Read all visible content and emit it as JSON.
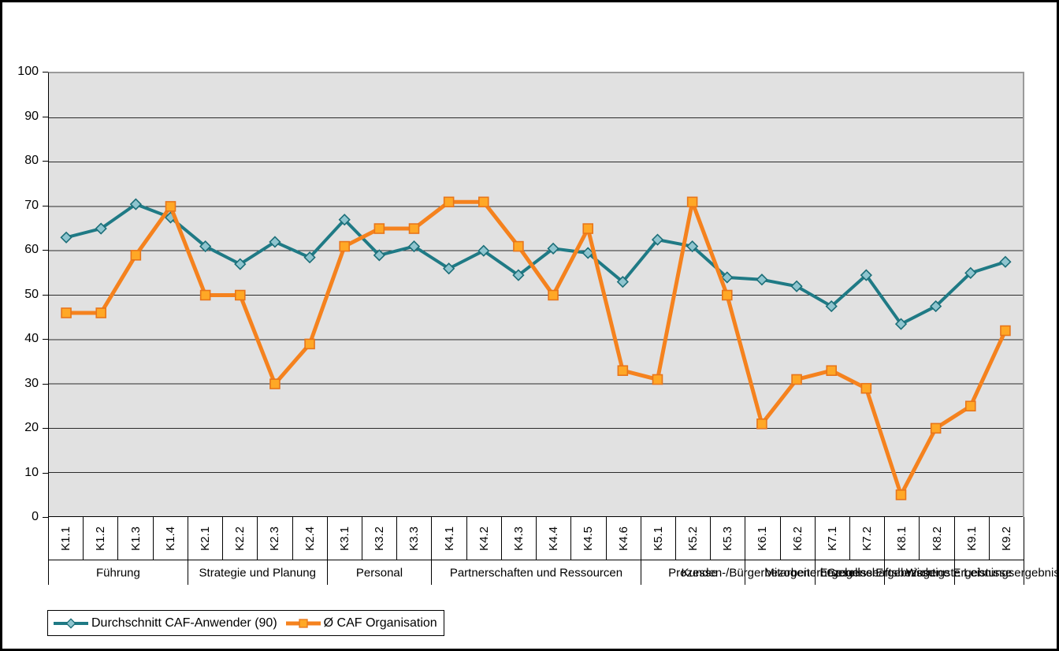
{
  "chart_data": {
    "type": "line",
    "title": "",
    "xlabel": "",
    "ylabel": "",
    "ylim": [
      0,
      100
    ],
    "y_ticks": [
      0,
      10,
      20,
      30,
      40,
      50,
      60,
      70,
      80,
      90,
      100
    ],
    "grid": true,
    "plot_bg": "#E1E1E1",
    "legend_position": "bottom-left",
    "categories": [
      "K1.1",
      "K1.2",
      "K1.3",
      "K1.4",
      "K2.1",
      "K2.2",
      "K2.3",
      "K2.4",
      "K3.1",
      "K3.2",
      "K3.3",
      "K4.1",
      "K4.2",
      "K4.3",
      "K4.4",
      "K4.5",
      "K4.6",
      "K5.1",
      "K5.2",
      "K5.3",
      "K6.1",
      "K6.2",
      "K7.1",
      "K7.2",
      "K8.1",
      "K8.2",
      "K9.1",
      "K9.2"
    ],
    "groups": [
      {
        "label": "Führung",
        "span": 4
      },
      {
        "label": "Strategie und Planung",
        "span": 4
      },
      {
        "label": "Personal",
        "span": 3
      },
      {
        "label": "Partnerschaften und Ressourcen",
        "span": 6
      },
      {
        "label": "Prozesse",
        "span": 3
      },
      {
        "label": "Kunden-/Bürgerbezogene Ergebnisse",
        "span": 2
      },
      {
        "label": "Mitarbeiterbezogene Ergebnisse",
        "span": 2
      },
      {
        "label": "Gesellschaftsbezogene Ergebnisse",
        "span": 2
      },
      {
        "label": "Wichtigste Leistungsergebnisse",
        "span": 2
      }
    ],
    "series": [
      {
        "name": "Durchschnitt CAF-Anwender (90)",
        "marker": "diamond",
        "color": "#1F7A85",
        "marker_fill": "#8FC5CF",
        "marker_stroke": "#1B6E78",
        "values": [
          63,
          65,
          70.5,
          67.5,
          61,
          57,
          62,
          58.5,
          67,
          59,
          61,
          56,
          60,
          54.5,
          60.5,
          59.5,
          53,
          62.5,
          61,
          54,
          53.5,
          52,
          47.5,
          54.5,
          43.5,
          47.5,
          55,
          57.5
        ]
      },
      {
        "name": "Ø CAF Organisation",
        "marker": "square",
        "color": "#F5821E",
        "marker_fill": "#FFA826",
        "marker_stroke": "#E8751A",
        "values": [
          46,
          46,
          59,
          70,
          50,
          50,
          30,
          39,
          61,
          65,
          65,
          71,
          71,
          61,
          50,
          65,
          33,
          31,
          71,
          50,
          21,
          31,
          33,
          29,
          5,
          20,
          25,
          42
        ]
      }
    ]
  },
  "colors": {
    "grid_line": "#2a2a2a",
    "axis_line": "#000000",
    "plot_border": "#9a9a9a"
  }
}
